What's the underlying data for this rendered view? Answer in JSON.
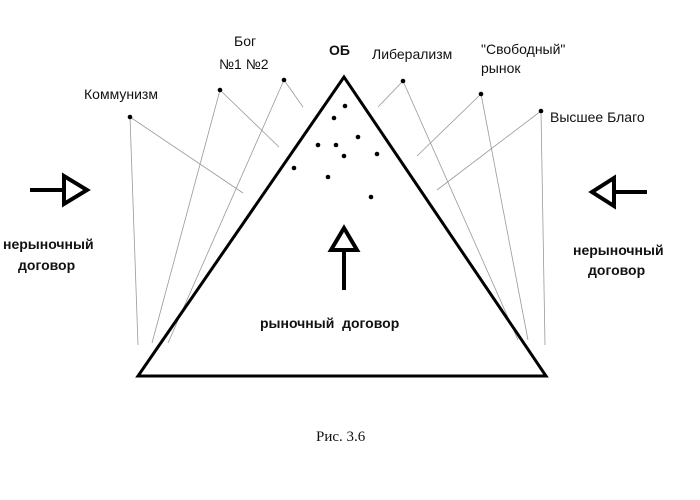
{
  "labels": {
    "ob": "ОБ",
    "communism": "Коммунизм",
    "god_line1": "Бог",
    "god_line2": "№1 №2",
    "liberalism": "Либерализм",
    "free_market_line1": "\"Свободный\"",
    "free_market_line2": "рынок",
    "highest_good": "Высшее Благо",
    "nonmarket_left_line1": "нерыночный",
    "nonmarket_left_line2": "договор",
    "nonmarket_right_line1": "нерыночный",
    "nonmarket_right_line2": "договор",
    "market_contract": "рыночный  договор"
  },
  "caption": "Рис. 3.6"
}
